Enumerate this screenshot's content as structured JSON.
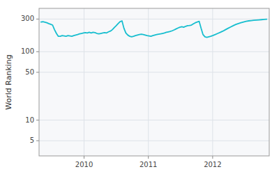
{
  "chart_data": {
    "type": "line",
    "ylabel": "World Ranking",
    "color": "#17becf",
    "log": "y",
    "grid": true,
    "xlim": [
      2009.3,
      2012.88
    ],
    "xticks": [
      2010,
      2011,
      2012
    ],
    "ylim": [
      3,
      430
    ],
    "yticks": [
      5,
      10,
      50,
      100,
      300
    ],
    "x": [
      2009.33,
      2009.36,
      2009.39,
      2009.42,
      2009.45,
      2009.48,
      2009.51,
      2009.54,
      2009.57,
      2009.6,
      2009.63,
      2009.66,
      2009.69,
      2009.72,
      2009.75,
      2009.78,
      2009.81,
      2009.84,
      2009.87,
      2009.9,
      2009.93,
      2009.96,
      2009.99,
      2010.02,
      2010.05,
      2010.08,
      2010.11,
      2010.14,
      2010.17,
      2010.2,
      2010.23,
      2010.26,
      2010.29,
      2010.32,
      2010.35,
      2010.38,
      2010.41,
      2010.44,
      2010.47,
      2010.5,
      2010.53,
      2010.56,
      2010.59,
      2010.62,
      2010.65,
      2010.68,
      2010.71,
      2010.74,
      2010.77,
      2010.8,
      2010.83,
      2010.86,
      2010.89,
      2010.92,
      2010.95,
      2010.98,
      2011.01,
      2011.04,
      2011.07,
      2011.1,
      2011.13,
      2011.16,
      2011.19,
      2011.22,
      2011.25,
      2011.28,
      2011.31,
      2011.34,
      2011.37,
      2011.4,
      2011.43,
      2011.46,
      2011.49,
      2011.52,
      2011.55,
      2011.58,
      2011.61,
      2011.64,
      2011.67,
      2011.7,
      2011.73,
      2011.76,
      2011.79,
      2011.82,
      2011.85,
      2011.88,
      2011.91,
      2011.94,
      2011.97,
      2012.0,
      2012.04,
      2012.08,
      2012.12,
      2012.16,
      2012.2,
      2012.24,
      2012.28,
      2012.32,
      2012.36,
      2012.4,
      2012.44,
      2012.48,
      2012.52,
      2012.56,
      2012.6,
      2012.64,
      2012.68,
      2012.72,
      2012.76,
      2012.8,
      2012.84
    ],
    "values": [
      272,
      274,
      270,
      265,
      258,
      252,
      245,
      210,
      185,
      168,
      168,
      172,
      170,
      168,
      172,
      170,
      168,
      172,
      175,
      178,
      182,
      185,
      188,
      190,
      188,
      192,
      188,
      192,
      190,
      185,
      182,
      185,
      188,
      190,
      188,
      195,
      200,
      210,
      225,
      240,
      258,
      275,
      282,
      220,
      188,
      175,
      168,
      165,
      168,
      172,
      175,
      178,
      180,
      178,
      175,
      172,
      170,
      168,
      172,
      175,
      178,
      180,
      182,
      185,
      188,
      192,
      195,
      198,
      202,
      208,
      215,
      222,
      228,
      232,
      228,
      235,
      240,
      242,
      245,
      255,
      265,
      272,
      278,
      220,
      178,
      165,
      162,
      165,
      168,
      172,
      178,
      185,
      192,
      200,
      210,
      220,
      230,
      240,
      250,
      258,
      265,
      272,
      278,
      282,
      285,
      288,
      290,
      292,
      294,
      296,
      298
    ]
  }
}
